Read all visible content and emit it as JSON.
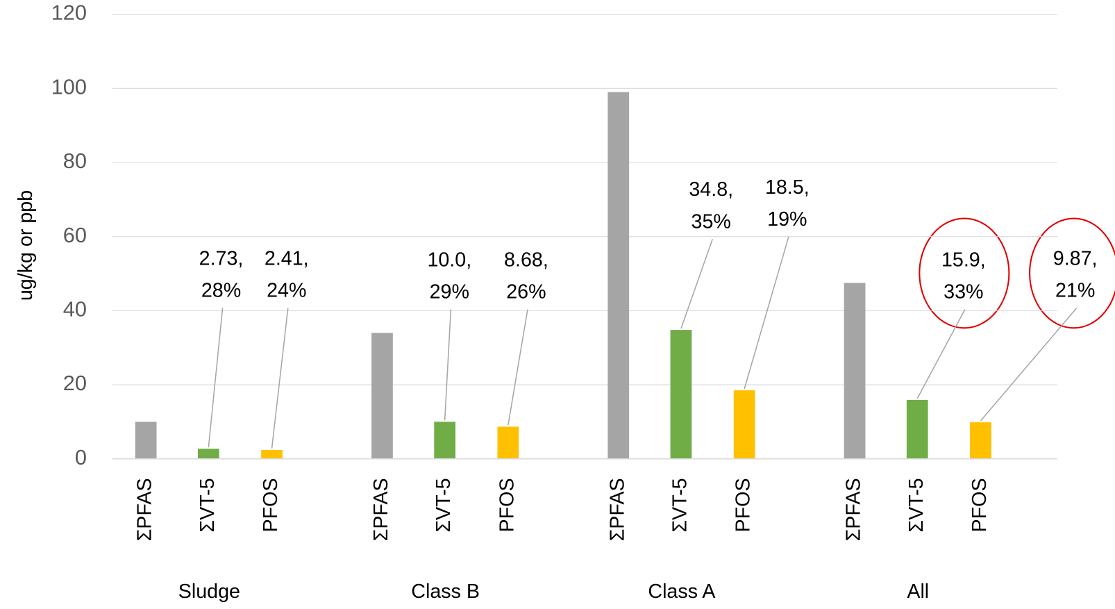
{
  "chart_data": {
    "type": "bar",
    "y_label": "ug/kg or ppb",
    "categories": [
      "Sludge",
      "Class B",
      "Class A",
      "All"
    ],
    "series": [
      {
        "name": "ΣPFAS",
        "color": "#a5a5a5",
        "values": [
          10,
          34,
          99,
          47.5
        ]
      },
      {
        "name": "ΣVT-5",
        "color": "#70ad47",
        "values": [
          2.73,
          10.0,
          34.8,
          15.9
        ],
        "value_labels": [
          [
            "2.73,",
            "28%"
          ],
          [
            "10.0,",
            "29%"
          ],
          [
            "34.8,",
            "35%"
          ],
          [
            "15.9,",
            "33%"
          ]
        ]
      },
      {
        "name": "PFOS",
        "color": "#ffc000",
        "values": [
          2.41,
          8.68,
          18.5,
          9.87
        ],
        "value_labels": [
          [
            "2.41,",
            "24%"
          ],
          [
            "8.68,",
            "26%"
          ],
          [
            "18.5,",
            "19%"
          ],
          [
            "9.87,",
            "21%"
          ]
        ]
      }
    ],
    "ylim": [
      0,
      120
    ],
    "yticks": [
      0,
      20,
      40,
      60,
      80,
      100,
      120
    ],
    "grid": true
  }
}
